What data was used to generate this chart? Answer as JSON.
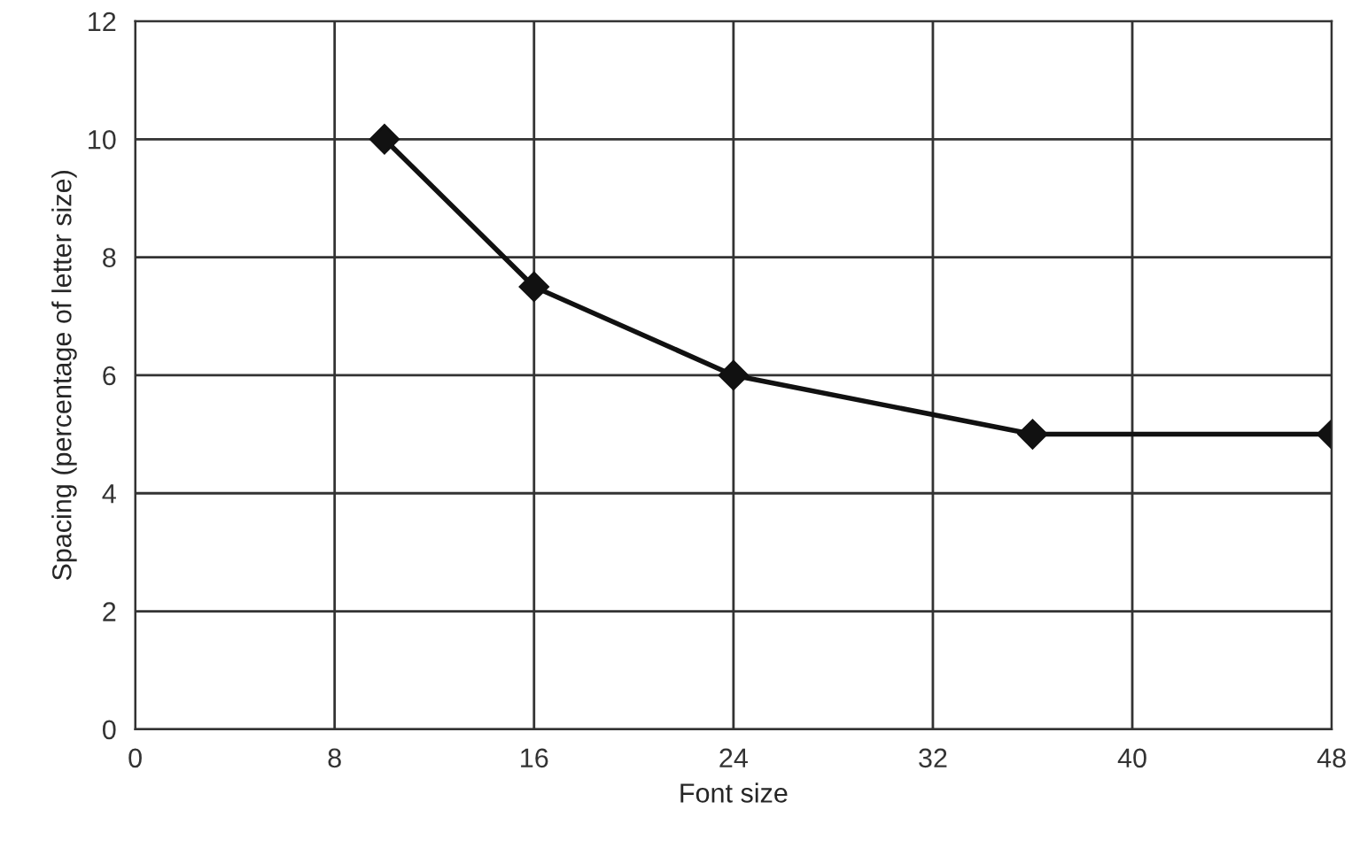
{
  "chart_data": {
    "type": "line",
    "xlabel": "Font size",
    "ylabel": "Spacing (percentage of letter size)",
    "x": [
      10,
      16,
      24,
      36,
      48
    ],
    "series": [
      {
        "color": "#111111",
        "values": [
          10,
          7.5,
          6,
          5,
          5
        ]
      }
    ],
    "xlim": [
      0,
      48
    ],
    "xticks": [
      0,
      8,
      16,
      24,
      32,
      40,
      48
    ],
    "ylim": [
      0,
      12
    ],
    "yticks": [
      0,
      2,
      4,
      6,
      8,
      10,
      12
    ],
    "grid": true,
    "marker": "diamond",
    "line_style": "solid"
  }
}
